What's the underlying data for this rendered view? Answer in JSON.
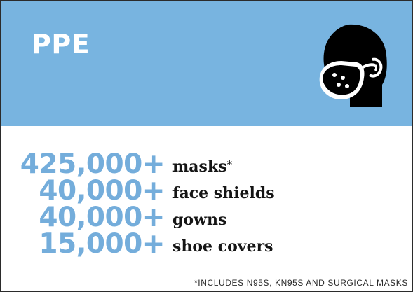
{
  "header": {
    "title": "PPE",
    "background_color": "#78b4e0",
    "icon": "face-mask-person-icon"
  },
  "items": [
    {
      "count": "425,000+",
      "label": "masks",
      "footnote_mark": "*"
    },
    {
      "count": "40,000+",
      "label": "face shields"
    },
    {
      "count": "40,000+",
      "label": "gowns"
    },
    {
      "count": "15,000+",
      "label": "shoe covers"
    }
  ],
  "footnote": "*INCLUDES N95S, KN95S AND SURGICAL MASKS",
  "colors": {
    "accent": "#74addb",
    "text": "#151515"
  }
}
